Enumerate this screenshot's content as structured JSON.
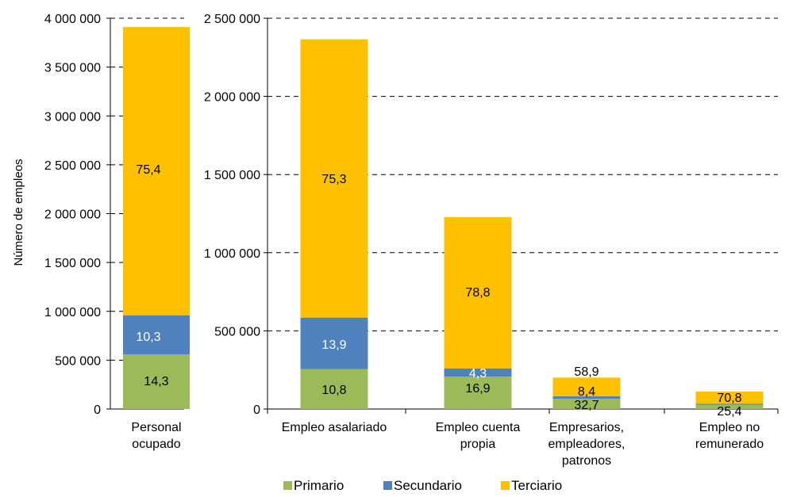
{
  "colors": {
    "primario": "#9BBB59",
    "secundario": "#4F81BD",
    "terciario": "#FFC000"
  },
  "chart_data": [
    {
      "type": "bar",
      "stacked": true,
      "title": "",
      "ylabel": "Número de empleos",
      "ylim": [
        0,
        4000000
      ],
      "yticks": [
        "0",
        "500 000",
        "1 000 000",
        "1 500 000",
        "2 000 000",
        "2 500 000",
        "3 000 000",
        "3 500 000",
        "4 000 000"
      ],
      "ytick_values": [
        0,
        500000,
        1000000,
        1500000,
        2000000,
        2500000,
        3000000,
        3500000,
        4000000
      ],
      "grid": "dashed",
      "categories": [
        [
          "Personal",
          "ocupado"
        ]
      ],
      "series": [
        {
          "name": "Primario",
          "values": [
            560000
          ],
          "labels": [
            "14,3"
          ]
        },
        {
          "name": "Secundario",
          "values": [
            400000
          ],
          "labels": [
            "10,3"
          ]
        },
        {
          "name": "Terciario",
          "values": [
            2950000
          ],
          "labels": [
            "75,4"
          ]
        }
      ]
    },
    {
      "type": "bar",
      "stacked": true,
      "title": "",
      "ylabel": "",
      "ylim": [
        0,
        2500000
      ],
      "yticks": [
        "0",
        "500 000",
        "1 000 000",
        "1 500 000",
        "2 000 000",
        "2 500 000"
      ],
      "ytick_values": [
        0,
        500000,
        1000000,
        1500000,
        2000000,
        2500000
      ],
      "grid": "dashed",
      "categories": [
        [
          "Empleo asalariado"
        ],
        [
          "Empleo cuenta",
          "propia"
        ],
        [
          "Empresarios,",
          "empleadores,",
          "patronos"
        ],
        [
          "Empleo no",
          "remunerado"
        ]
      ],
      "series": [
        {
          "name": "Primario",
          "values": [
            255000,
            208000,
            65000,
            28000
          ],
          "labels": [
            "10,8",
            "16,9",
            "32,7",
            "25,4"
          ]
        },
        {
          "name": "Secundario",
          "values": [
            330000,
            52000,
            17000,
            5000
          ],
          "labels": [
            "13,9",
            "4,3",
            "8,4",
            ""
          ]
        },
        {
          "name": "Terciario",
          "values": [
            1780000,
            968000,
            119000,
            79000
          ],
          "labels": [
            "75,3",
            "78,8",
            "58,9",
            "70,8"
          ]
        }
      ]
    }
  ],
  "legend": {
    "placement": "bottom",
    "items": [
      {
        "label": "Primario",
        "color_key": "primario"
      },
      {
        "label": "Secundario",
        "color_key": "secundario"
      },
      {
        "label": "Terciario",
        "color_key": "terciario"
      }
    ]
  }
}
